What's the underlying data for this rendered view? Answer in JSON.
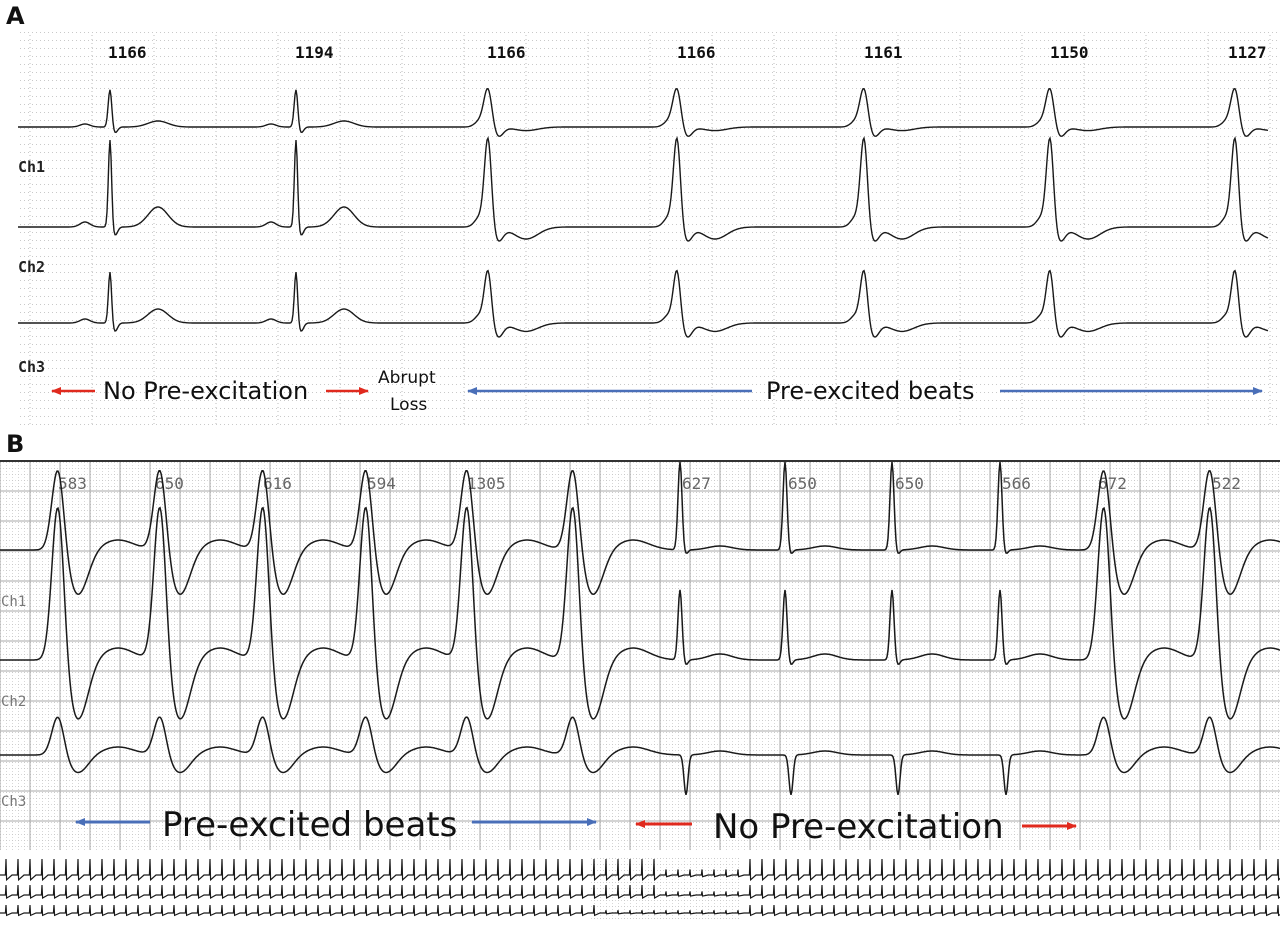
{
  "panel_a": {
    "label": "A",
    "rr_intervals": [
      "1166",
      "1194",
      "1166",
      "1166",
      "1161",
      "1150",
      "1127"
    ],
    "channels": [
      "Ch1",
      "Ch2",
      "Ch3"
    ],
    "annotations": {
      "no_preexcitation": "No Pre-excitation",
      "abrupt_line1": "Abrupt",
      "abrupt_line2": "Loss",
      "preexcited": "Pre-excited beats"
    }
  },
  "panel_b": {
    "label": "B",
    "rr_intervals": [
      "583",
      "650",
      "616",
      "594",
      "1305",
      "627",
      "650",
      "650",
      "566",
      "672",
      "522"
    ],
    "channels": [
      "Ch1",
      "Ch2",
      "Ch3"
    ],
    "annotations": {
      "preexcited": "Pre-excited beats",
      "no_preexcitation": "No Pre-excitation"
    }
  },
  "colors": {
    "red_arrow": "#e02a1e",
    "blue_arrow": "#4a6fb8",
    "trace": "#1a1a1a",
    "grid": "#b9b9b9"
  }
}
